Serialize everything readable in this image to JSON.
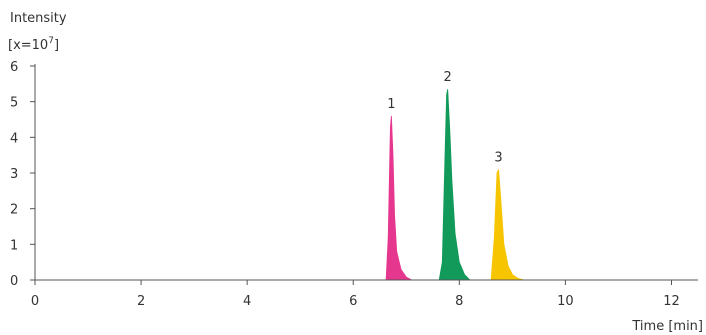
{
  "chart_data": {
    "type": "area",
    "ylabel_line1": "Intensity",
    "ylabel_line2_base": "[x=10",
    "ylabel_line2_exp": "7",
    "ylabel_line2_end": "]",
    "xlabel": "Time [min]",
    "xlim": [
      0,
      12.5
    ],
    "ylim": [
      0,
      6
    ],
    "x_ticks": [
      0,
      2,
      4,
      6,
      8,
      10,
      12
    ],
    "y_ticks": [
      0,
      1,
      2,
      3,
      4,
      5,
      6
    ],
    "grid": false,
    "series": [
      {
        "label": "1",
        "color": "#e6378f",
        "points": [
          [
            6.62,
            0
          ],
          [
            6.66,
            1.2
          ],
          [
            6.7,
            4.3
          ],
          [
            6.72,
            4.6
          ],
          [
            6.75,
            3.5
          ],
          [
            6.78,
            1.8
          ],
          [
            6.82,
            0.8
          ],
          [
            6.9,
            0.3
          ],
          [
            7.0,
            0.08
          ],
          [
            7.1,
            0
          ]
        ]
      },
      {
        "label": "2",
        "color": "#119a5a",
        "points": [
          [
            7.62,
            0
          ],
          [
            7.68,
            0.5
          ],
          [
            7.73,
            3.5
          ],
          [
            7.76,
            5.2
          ],
          [
            7.78,
            5.35
          ],
          [
            7.82,
            4.2
          ],
          [
            7.86,
            2.8
          ],
          [
            7.92,
            1.3
          ],
          [
            8.0,
            0.5
          ],
          [
            8.1,
            0.15
          ],
          [
            8.2,
            0
          ]
        ]
      },
      {
        "label": "3",
        "color": "#f7c500",
        "points": [
          [
            8.6,
            0
          ],
          [
            8.66,
            1.2
          ],
          [
            8.71,
            3.0
          ],
          [
            8.74,
            3.1
          ],
          [
            8.78,
            2.3
          ],
          [
            8.84,
            1.0
          ],
          [
            8.92,
            0.4
          ],
          [
            9.0,
            0.15
          ],
          [
            9.1,
            0.05
          ],
          [
            9.22,
            0
          ]
        ]
      }
    ]
  }
}
